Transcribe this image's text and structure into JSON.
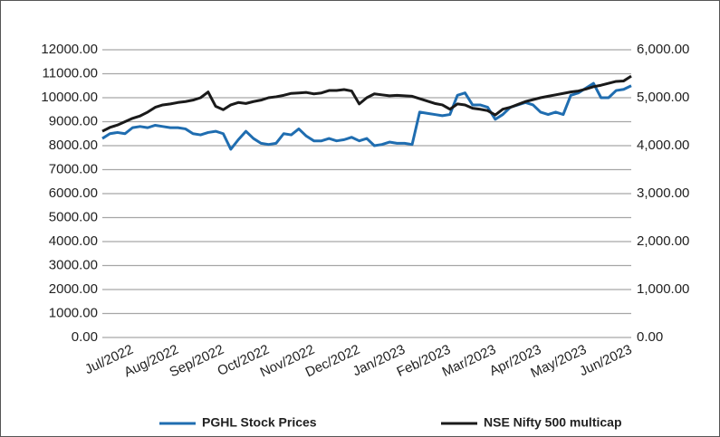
{
  "chart_data": {
    "type": "line",
    "categories": [
      null,
      null,
      null,
      null,
      "Jul/2022",
      null,
      null,
      null,
      null,
      null,
      "Aug/2022",
      null,
      null,
      null,
      null,
      null,
      "Sep/2022",
      null,
      null,
      null,
      null,
      null,
      "Oct/2022",
      null,
      null,
      null,
      null,
      null,
      "Nov/2022",
      null,
      null,
      null,
      null,
      null,
      "Dec/2022",
      null,
      null,
      null,
      null,
      null,
      "Jan/2023",
      null,
      null,
      null,
      null,
      null,
      "Feb/2023",
      null,
      null,
      null,
      null,
      null,
      "Mar/2023",
      null,
      null,
      null,
      null,
      null,
      "Apr/2023",
      null,
      null,
      null,
      null,
      null,
      "May/2023",
      null,
      null,
      null,
      null,
      null,
      "Jun/2023"
    ],
    "series": [
      {
        "name": "PGHL Stock Prices",
        "color": "#1f6db0",
        "axis": "y",
        "values": [
          8300,
          8500,
          8550,
          8500,
          8750,
          8800,
          8750,
          8850,
          8800,
          8750,
          8750,
          8700,
          8500,
          8450,
          8550,
          8600,
          8500,
          7850,
          8250,
          8600,
          8300,
          8100,
          8050,
          8100,
          8500,
          8450,
          8700,
          8400,
          8200,
          8200,
          8300,
          8200,
          8250,
          8350,
          8200,
          8300,
          8000,
          8050,
          8150,
          8100,
          8100,
          8050,
          9400,
          9350,
          9300,
          9250,
          9300,
          10100,
          10200,
          9700,
          9700,
          9600,
          9100,
          9300,
          9600,
          9700,
          9800,
          9700,
          9400,
          9300,
          9400,
          9300,
          10100,
          10200,
          10400,
          10600,
          10000,
          10000,
          10300,
          10350,
          10500
        ]
      },
      {
        "name": "NSE Nifty 500 multicap",
        "color": "#1a1a1a",
        "axis": "y2",
        "values": [
          4300,
          4380,
          4430,
          4500,
          4570,
          4620,
          4700,
          4800,
          4850,
          4870,
          4900,
          4920,
          4950,
          5000,
          5120,
          4820,
          4750,
          4850,
          4900,
          4880,
          4920,
          4950,
          5000,
          5020,
          5050,
          5090,
          5100,
          5110,
          5080,
          5100,
          5150,
          5150,
          5170,
          5140,
          4870,
          5000,
          5080,
          5060,
          5040,
          5050,
          5040,
          5030,
          4980,
          4930,
          4880,
          4850,
          4760,
          4870,
          4850,
          4780,
          4760,
          4730,
          4640,
          4760,
          4800,
          4860,
          4920,
          4960,
          5000,
          5030,
          5060,
          5090,
          5120,
          5140,
          5180,
          5230,
          5260,
          5300,
          5340,
          5350,
          5450
        ]
      }
    ],
    "ylim": [
      0,
      12000
    ],
    "yticks": [
      {
        "value": 0,
        "label": "0.00"
      },
      {
        "value": 1000,
        "label": "1000.00"
      },
      {
        "value": 2000,
        "label": "2000.00"
      },
      {
        "value": 3000,
        "label": "3000.00"
      },
      {
        "value": 4000,
        "label": "4000.00"
      },
      {
        "value": 5000,
        "label": "5000.00"
      },
      {
        "value": 6000,
        "label": "6000.00"
      },
      {
        "value": 7000,
        "label": "7000.00"
      },
      {
        "value": 8000,
        "label": "8000.00"
      },
      {
        "value": 9000,
        "label": "9000.00"
      },
      {
        "value": 10000,
        "label": "10000.00"
      },
      {
        "value": 11000,
        "label": "11000.00"
      },
      {
        "value": 12000,
        "label": "12000.00"
      }
    ],
    "y2lim": [
      0,
      6000
    ],
    "y2ticks": [
      {
        "value": 0,
        "label": "0.00"
      },
      {
        "value": 1000,
        "label": "1,000.00"
      },
      {
        "value": 2000,
        "label": "2,000.00"
      },
      {
        "value": 3000,
        "label": "3,000.00"
      },
      {
        "value": 4000,
        "label": "4,000.00"
      },
      {
        "value": 5000,
        "label": "5,000.00"
      },
      {
        "value": 6000,
        "label": "6,000.00"
      }
    ],
    "grid": true,
    "legend": "bottom"
  }
}
